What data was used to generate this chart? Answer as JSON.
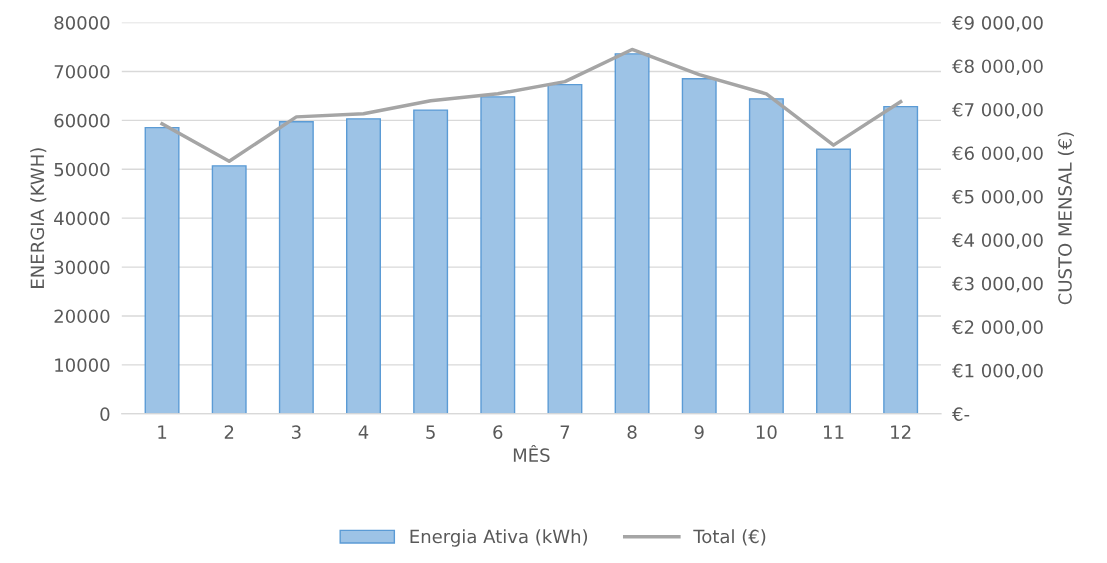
{
  "chart_data": {
    "type": "bar",
    "xlabel": "MÊS",
    "ylabel": "ENERGIA (KWH)",
    "y2label": "CUSTO MENSAL (€)",
    "categories": [
      "1",
      "2",
      "3",
      "4",
      "5",
      "6",
      "7",
      "8",
      "9",
      "10",
      "11",
      "12"
    ],
    "series": [
      {
        "name": "Energia Ativa (kWh)",
        "color": "#9dc3e6",
        "values": [
          58500,
          50700,
          59700,
          60300,
          62100,
          64800,
          67300,
          73600,
          68500,
          64400,
          54100,
          62800
        ]
      },
      {
        "name": "Total (€)",
        "type": "line",
        "axis": "y2",
        "color": "#a5a5a5",
        "values": [
          6670,
          5810,
          6830,
          6900,
          7200,
          7360,
          7640,
          8380,
          7800,
          7360,
          6180,
          7180
        ]
      }
    ],
    "ylim": [
      0,
      80000
    ],
    "yticks": [
      0,
      10000,
      20000,
      30000,
      40000,
      50000,
      60000,
      70000,
      80000
    ],
    "y2lim": [
      0,
      9000
    ],
    "y2ticks": [
      {
        "value": 0,
        "label": "€-"
      },
      {
        "value": 1000,
        "label": "€1 000,00"
      },
      {
        "value": 2000,
        "label": "€2 000,00"
      },
      {
        "value": 3000,
        "label": "€3 000,00"
      },
      {
        "value": 4000,
        "label": "€4 000,00"
      },
      {
        "value": 5000,
        "label": "€5 000,00"
      },
      {
        "value": 6000,
        "label": "€6 000,00"
      },
      {
        "value": 7000,
        "label": "€7 000,00"
      },
      {
        "value": 8000,
        "label": "€8 000,00"
      },
      {
        "value": 9000,
        "label": "€9 000,00"
      }
    ],
    "grid": "y",
    "legend": "bottom"
  }
}
